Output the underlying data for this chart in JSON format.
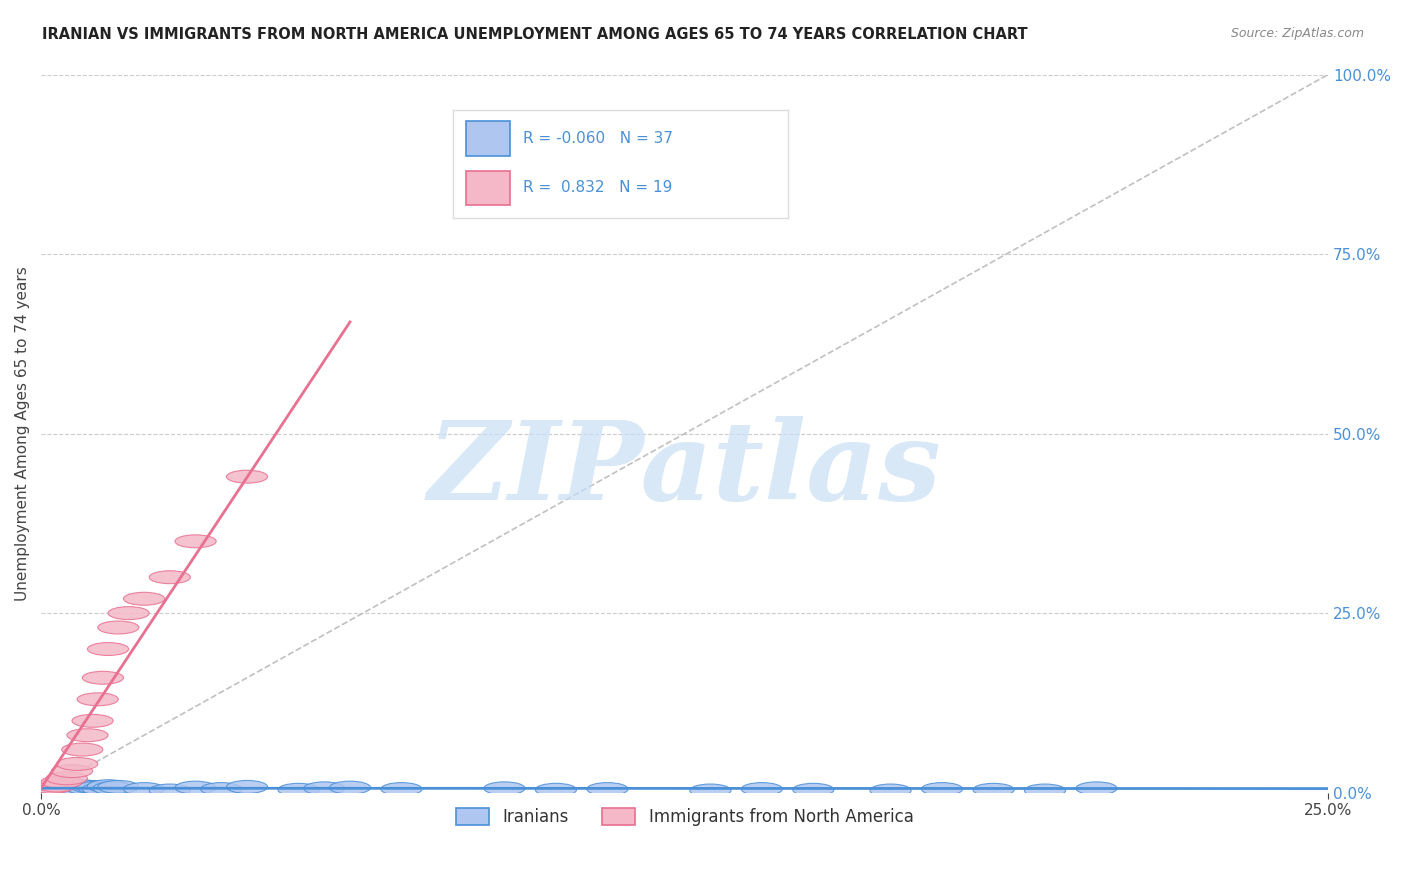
{
  "title": "IRANIAN VS IMMIGRANTS FROM NORTH AMERICA UNEMPLOYMENT AMONG AGES 65 TO 74 YEARS CORRELATION CHART",
  "source": "Source: ZipAtlas.com",
  "ylabel": "Unemployment Among Ages 65 to 74 years",
  "xlim": [
    0.0,
    0.25
  ],
  "ylim": [
    0.0,
    1.0
  ],
  "xticks": [
    0.0,
    0.25
  ],
  "yticks": [
    0.0,
    0.25,
    0.5,
    0.75,
    1.0
  ],
  "xtick_labels": [
    "0.0%",
    "25.0%"
  ],
  "ytick_labels": [
    "0.0%",
    "25.0%",
    "50.0%",
    "75.0%",
    "100.0%"
  ],
  "grid_yticks": [
    0.25,
    0.5,
    0.75,
    1.0
  ],
  "background_color": "#ffffff",
  "grid_color": "#cccccc",
  "iranians_color": "#aec6f0",
  "immigrants_color": "#f4b8c8",
  "iranians_line_color": "#4a90d9",
  "immigrants_line_color": "#e87090",
  "ref_line_color": "#c0c0c0",
  "legend_iranians_label": "Iranians",
  "legend_immigrants_label": "Immigrants from North America",
  "R_iranians": -0.06,
  "N_iranians": 37,
  "R_immigrants": 0.832,
  "N_immigrants": 19,
  "watermark": "ZIPatlas",
  "watermark_color": "#c8dff5",
  "iranians_x": [
    0.001,
    0.002,
    0.003,
    0.003,
    0.004,
    0.005,
    0.005,
    0.006,
    0.007,
    0.008,
    0.009,
    0.01,
    0.011,
    0.012,
    0.013,
    0.014,
    0.015,
    0.02,
    0.025,
    0.03,
    0.035,
    0.04,
    0.05,
    0.055,
    0.06,
    0.07,
    0.09,
    0.1,
    0.11,
    0.13,
    0.14,
    0.15,
    0.165,
    0.175,
    0.185,
    0.195,
    0.205
  ],
  "iranians_y": [
    0.008,
    0.005,
    0.007,
    0.01,
    0.006,
    0.008,
    0.012,
    0.007,
    0.005,
    0.009,
    0.006,
    0.008,
    0.007,
    0.005,
    0.009,
    0.006,
    0.008,
    0.005,
    0.003,
    0.007,
    0.005,
    0.008,
    0.004,
    0.006,
    0.007,
    0.005,
    0.006,
    0.004,
    0.005,
    0.003,
    0.005,
    0.004,
    0.003,
    0.005,
    0.004,
    0.003,
    0.006
  ],
  "immigrants_x": [
    0.001,
    0.002,
    0.003,
    0.004,
    0.005,
    0.006,
    0.007,
    0.008,
    0.009,
    0.01,
    0.011,
    0.012,
    0.013,
    0.015,
    0.017,
    0.02,
    0.025,
    0.03,
    0.04
  ],
  "immigrants_y": [
    0.005,
    0.008,
    0.01,
    0.015,
    0.02,
    0.03,
    0.04,
    0.06,
    0.08,
    0.1,
    0.13,
    0.16,
    0.2,
    0.23,
    0.25,
    0.27,
    0.3,
    0.35,
    0.44
  ]
}
